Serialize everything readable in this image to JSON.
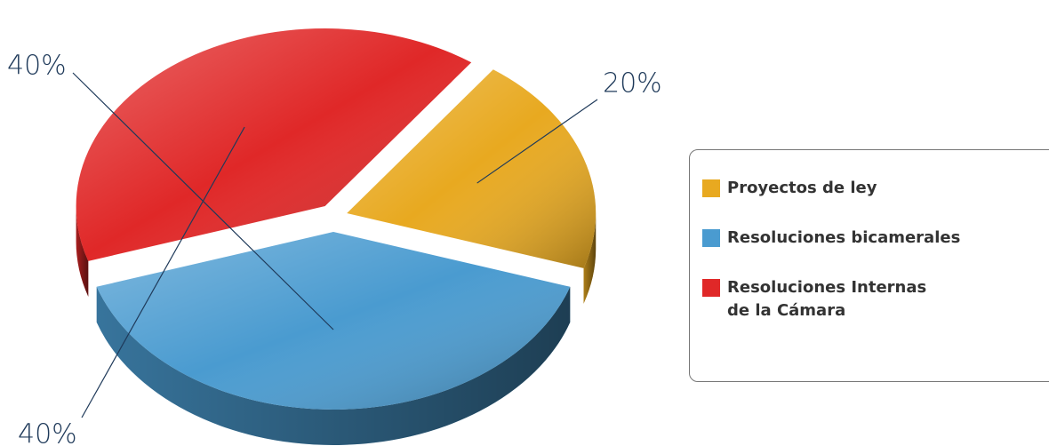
{
  "chart_data": {
    "type": "pie",
    "categories": [
      "Proyectos de ley",
      "Resoluciones bicamerales",
      "Resoluciones Internas\nde la Cámara"
    ],
    "values": [
      20,
      40,
      40
    ],
    "value_labels": [
      "20%",
      "40%",
      "40%"
    ],
    "colors": [
      "#e8a920",
      "#4a9bd0",
      "#e02828"
    ],
    "legend": "right"
  }
}
